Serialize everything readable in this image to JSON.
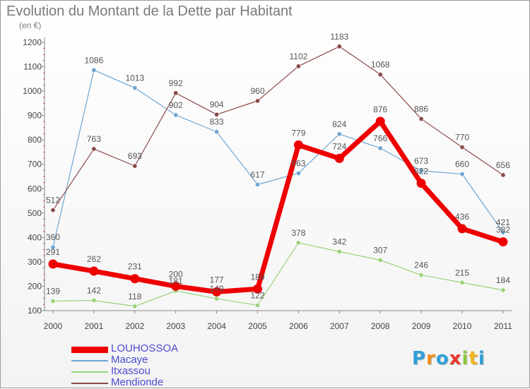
{
  "title": "Evolution du Montant de la Dette par Habitant",
  "unit_label": "(en €)",
  "logo": {
    "text": "Proxiti",
    "letters": [
      "P",
      "r",
      "o",
      "x",
      "i",
      "t",
      "i"
    ],
    "colors": [
      "#2f9fd8",
      "#f28c1e",
      "#2f9fd8",
      "#e8332a",
      "#8cc63f",
      "#f2b21e",
      "#2f9fd8"
    ]
  },
  "chart_data": {
    "type": "line",
    "title": "Evolution du Montant de la Dette par Habitant",
    "subtitle": "(en €)",
    "xlabel": "",
    "ylabel": "",
    "x": [
      "2000",
      "2001",
      "2002",
      "2003",
      "2004",
      "2005",
      "2006",
      "2007",
      "2008",
      "2009",
      "2010",
      "2011"
    ],
    "yticks": [
      100,
      200,
      300,
      400,
      500,
      600,
      700,
      800,
      900,
      1000,
      1100,
      1200
    ],
    "ylim": [
      100,
      1230
    ],
    "grid": false,
    "legend_position": "bottom-left",
    "series": [
      {
        "name": "LOUHOSSOA",
        "color": "#ee0000",
        "width": 7,
        "values": [
          291,
          262,
          231,
          200,
          177,
          189,
          779,
          724,
          876,
          622,
          436,
          382
        ]
      },
      {
        "name": "Macaye",
        "color": "#6ea6d4",
        "width": 1.2,
        "values": [
          360,
          1086,
          1013,
          902,
          833,
          617,
          663,
          824,
          766,
          673,
          660,
          421
        ]
      },
      {
        "name": "Itxassou",
        "color": "#9ad27a",
        "width": 1.2,
        "values": [
          139,
          142,
          118,
          181,
          149,
          122,
          378,
          342,
          307,
          246,
          215,
          184
        ]
      },
      {
        "name": "Mendionde",
        "color": "#8b4a4a",
        "width": 1.2,
        "values": [
          512,
          763,
          693,
          992,
          904,
          960,
          1102,
          1183,
          1068,
          886,
          770,
          656
        ]
      }
    ]
  }
}
